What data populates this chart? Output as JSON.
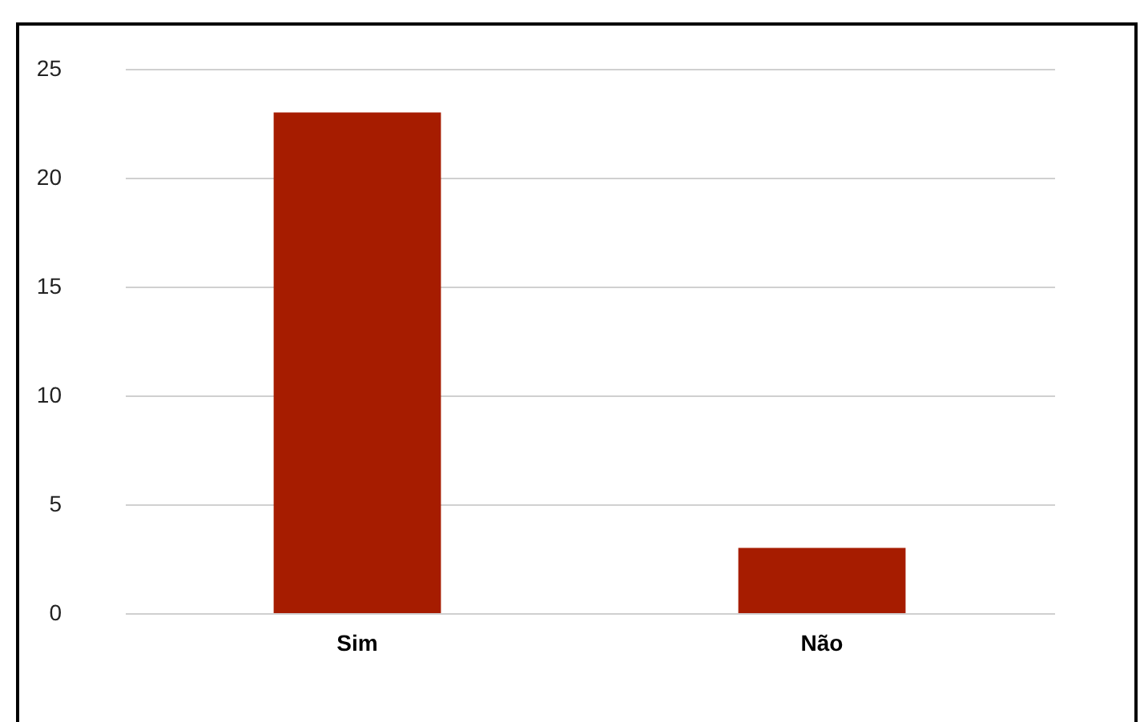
{
  "chart_data": {
    "type": "bar",
    "categories": [
      "Sim",
      "Não"
    ],
    "values": [
      23,
      3
    ],
    "color": "#a61c00",
    "ylim": [
      0,
      25
    ],
    "yticks": [
      0,
      5,
      10,
      15,
      20,
      25
    ],
    "grid": "y"
  }
}
